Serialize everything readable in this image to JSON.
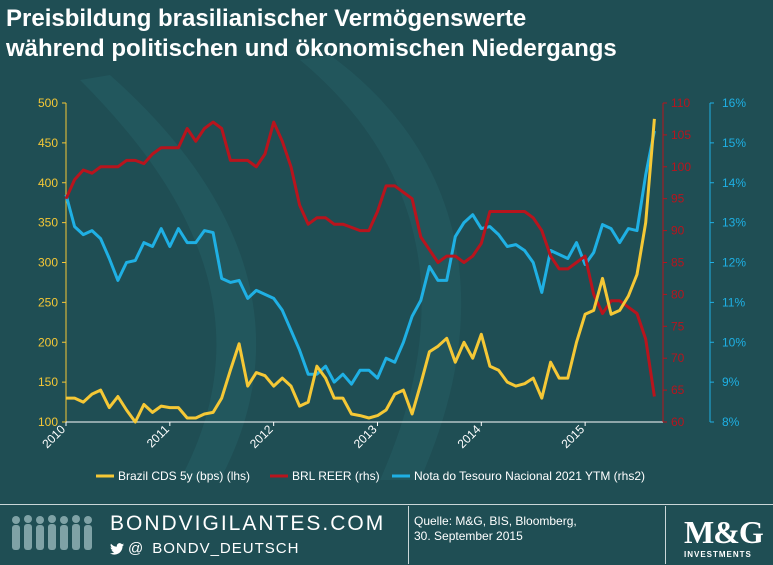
{
  "title_line1": "Preisbildung brasilianischer Vermögenswerte",
  "title_line2": "während politischen und ökonomischen Niedergangs",
  "chart_data": {
    "type": "line",
    "x": [
      2010.0,
      2010.083,
      2010.167,
      2010.25,
      2010.333,
      2010.417,
      2010.5,
      2010.583,
      2010.667,
      2010.75,
      2010.833,
      2010.917,
      2011.0,
      2011.083,
      2011.167,
      2011.25,
      2011.333,
      2011.417,
      2011.5,
      2011.583,
      2011.667,
      2011.75,
      2011.833,
      2011.917,
      2012.0,
      2012.083,
      2012.167,
      2012.25,
      2012.333,
      2012.417,
      2012.5,
      2012.583,
      2012.667,
      2012.75,
      2012.833,
      2012.917,
      2013.0,
      2013.083,
      2013.167,
      2013.25,
      2013.333,
      2013.417,
      2013.5,
      2013.583,
      2013.667,
      2013.75,
      2013.833,
      2013.917,
      2014.0,
      2014.083,
      2014.167,
      2014.25,
      2014.333,
      2014.417,
      2014.5,
      2014.583,
      2014.667,
      2014.75,
      2014.833,
      2014.917,
      2015.0,
      2015.083,
      2015.167,
      2015.25,
      2015.333,
      2015.417,
      2015.5,
      2015.583,
      2015.667
    ],
    "series": [
      {
        "name": "Brazil CDS 5y (bps) (lhs)",
        "axis": "lhs",
        "color": "#f5c836",
        "values": [
          130,
          130,
          125,
          135,
          140,
          118,
          132,
          115,
          100,
          122,
          112,
          120,
          118,
          118,
          105,
          105,
          110,
          112,
          130,
          165,
          198,
          145,
          162,
          158,
          145,
          155,
          145,
          120,
          125,
          170,
          155,
          130,
          130,
          110,
          108,
          105,
          108,
          115,
          135,
          140,
          110,
          148,
          188,
          195,
          205,
          175,
          200,
          180,
          210,
          170,
          165,
          150,
          145,
          148,
          155,
          130,
          175,
          155,
          155,
          200,
          235,
          240,
          280,
          235,
          240,
          258,
          285,
          350,
          480
        ]
      },
      {
        "name": "BRL REER (rhs)",
        "axis": "rhs",
        "color": "#b8141d",
        "values": [
          95,
          98,
          99.5,
          99,
          100,
          100,
          100,
          101,
          101,
          100.5,
          102,
          103,
          103,
          103,
          106,
          104,
          106,
          107,
          106,
          101,
          101,
          101,
          100,
          102,
          107,
          104,
          100,
          94,
          91,
          92,
          92,
          91,
          91,
          90.5,
          90,
          90,
          93,
          97,
          97,
          96,
          95,
          89,
          87,
          85,
          86,
          86,
          85,
          86,
          88,
          93,
          93,
          93,
          93,
          93,
          92,
          90,
          86,
          84,
          84,
          85,
          86,
          80,
          77,
          79,
          79,
          78,
          77,
          73,
          64
        ]
      },
      {
        "name": "Nota do Tesouro Nacional 2021 YTM (rhs2)",
        "axis": "rhs2",
        "color": "#1fb0e4",
        "values": [
          13.7,
          12.9,
          12.7,
          12.8,
          12.6,
          12.1,
          11.55,
          12.0,
          12.05,
          12.5,
          12.4,
          12.85,
          12.4,
          12.85,
          12.5,
          12.5,
          12.8,
          12.75,
          11.6,
          11.5,
          11.55,
          11.1,
          11.3,
          11.2,
          11.1,
          10.8,
          10.3,
          9.8,
          9.2,
          9.2,
          9.4,
          9.0,
          9.2,
          8.95,
          9.3,
          9.3,
          9.1,
          9.6,
          9.5,
          10.0,
          10.65,
          11.05,
          11.9,
          11.55,
          11.55,
          12.65,
          13.0,
          13.2,
          12.85,
          12.9,
          12.7,
          12.4,
          12.45,
          12.3,
          12.0,
          11.25,
          12.3,
          12.2,
          12.1,
          12.5,
          11.95,
          12.25,
          12.95,
          12.85,
          12.5,
          12.85,
          12.8,
          14.2,
          15.3
        ]
      }
    ],
    "x_ticks": [
      "2010",
      "2011",
      "2012",
      "2013",
      "2014",
      "2015"
    ],
    "lhs_ticks": [
      "100",
      "150",
      "200",
      "250",
      "300",
      "350",
      "400",
      "450",
      "500"
    ],
    "rhs_ticks": [
      "60",
      "65",
      "70",
      "75",
      "80",
      "85",
      "90",
      "95",
      "100",
      "105",
      "110"
    ],
    "rhs2_ticks": [
      "8%",
      "9%",
      "10%",
      "11%",
      "12%",
      "13%",
      "14%",
      "15%",
      "16%"
    ],
    "lhs_range": [
      100,
      500
    ],
    "rhs_range": [
      60,
      110
    ],
    "rhs2_range": [
      8,
      16
    ],
    "x_range": [
      2010,
      2015.75
    ],
    "lhs_color": "#f5c836",
    "rhs_color": "#b8141d",
    "rhs2_color": "#1fb0e4"
  },
  "footer": {
    "brand": "BONDVIGILANTES.COM",
    "social_at": "@",
    "social_handle": "BONDV_DEUTSCH",
    "source_line1": "Quelle: M&G, BIS, Bloomberg,",
    "source_line2": "30. September 2015",
    "logo_main": "M&G",
    "logo_sub": "INVESTMENTS"
  },
  "icons": {
    "people": "people-silhouettes-icon",
    "twitter": "twitter-bird-icon"
  }
}
